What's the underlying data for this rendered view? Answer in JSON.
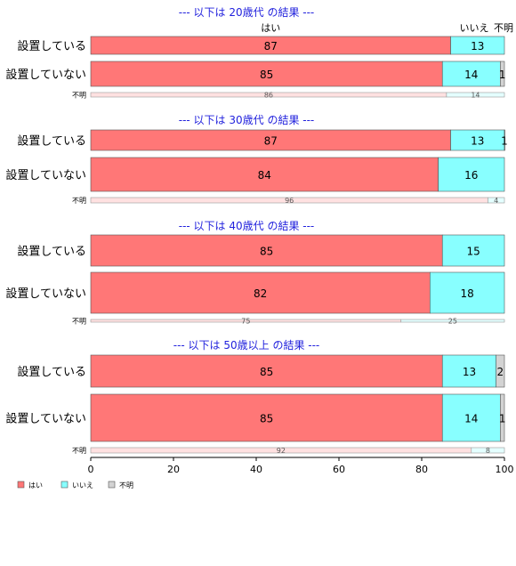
{
  "chart_data": {
    "type": "bar",
    "orientation": "horizontal",
    "stacked": true,
    "percent": true,
    "xlim": [
      0,
      100
    ],
    "xticks": [
      0,
      20,
      40,
      60,
      80,
      100
    ],
    "category_labels": [
      "はい",
      "いいえ",
      "不明"
    ],
    "colors": {
      "はい": "#ff7777",
      "いいえ": "#88ffff",
      "不明": "#d3d3d3",
      "はい_faded": "#ffe1e1",
      "いいえ_faded": "#e4ffff",
      "不明_faded": "#f4f4f4"
    },
    "title_color": "#2222dd",
    "panels": [
      {
        "title": "--- 以下は 20歳代 の結果 ---",
        "rows": [
          {
            "label": "設置している",
            "values": [
              87,
              13,
              0
            ],
            "data_labels": [
              "87",
              "13",
              ""
            ]
          },
          {
            "label": "設置していない",
            "values": [
              85,
              14,
              1
            ],
            "data_labels": [
              "85",
              "14",
              "1"
            ]
          },
          {
            "label": "不明",
            "values": [
              86,
              14,
              0
            ],
            "data_labels": [
              "86",
              "14",
              ""
            ],
            "minor": true
          }
        ]
      },
      {
        "title": "--- 以下は 30歳代 の結果 ---",
        "rows": [
          {
            "label": "設置している",
            "values": [
              87,
              13,
              1
            ],
            "data_labels": [
              "87",
              "13",
              "1"
            ]
          },
          {
            "label": "設置していない",
            "values": [
              84,
              16,
              0
            ],
            "data_labels": [
              "84",
              "16",
              ""
            ]
          },
          {
            "label": "不明",
            "values": [
              96,
              4,
              0
            ],
            "data_labels": [
              "96",
              "4",
              ""
            ],
            "minor": true
          }
        ]
      },
      {
        "title": "--- 以下は 40歳代 の結果 ---",
        "rows": [
          {
            "label": "設置している",
            "values": [
              85,
              15,
              0
            ],
            "data_labels": [
              "85",
              "15",
              ""
            ]
          },
          {
            "label": "設置していない",
            "values": [
              82,
              18,
              0
            ],
            "data_labels": [
              "82",
              "18",
              ""
            ]
          },
          {
            "label": "不明",
            "values": [
              75,
              25,
              0
            ],
            "data_labels": [
              "75",
              "25",
              ""
            ],
            "minor": true
          }
        ]
      },
      {
        "title": "--- 以下は 50歳以上 の結果 ---",
        "rows": [
          {
            "label": "設置している",
            "values": [
              85,
              13,
              2
            ],
            "data_labels": [
              "85",
              "13",
              "2"
            ]
          },
          {
            "label": "設置していない",
            "values": [
              85,
              14,
              1
            ],
            "data_labels": [
              "85",
              "14",
              "1"
            ]
          },
          {
            "label": "不明",
            "values": [
              92,
              8,
              0
            ],
            "data_labels": [
              "92",
              "8",
              ""
            ],
            "minor": true
          }
        ]
      }
    ],
    "legend": {
      "placement": "bottom-left",
      "entries": [
        "はい",
        "いいえ",
        "不明"
      ]
    }
  }
}
